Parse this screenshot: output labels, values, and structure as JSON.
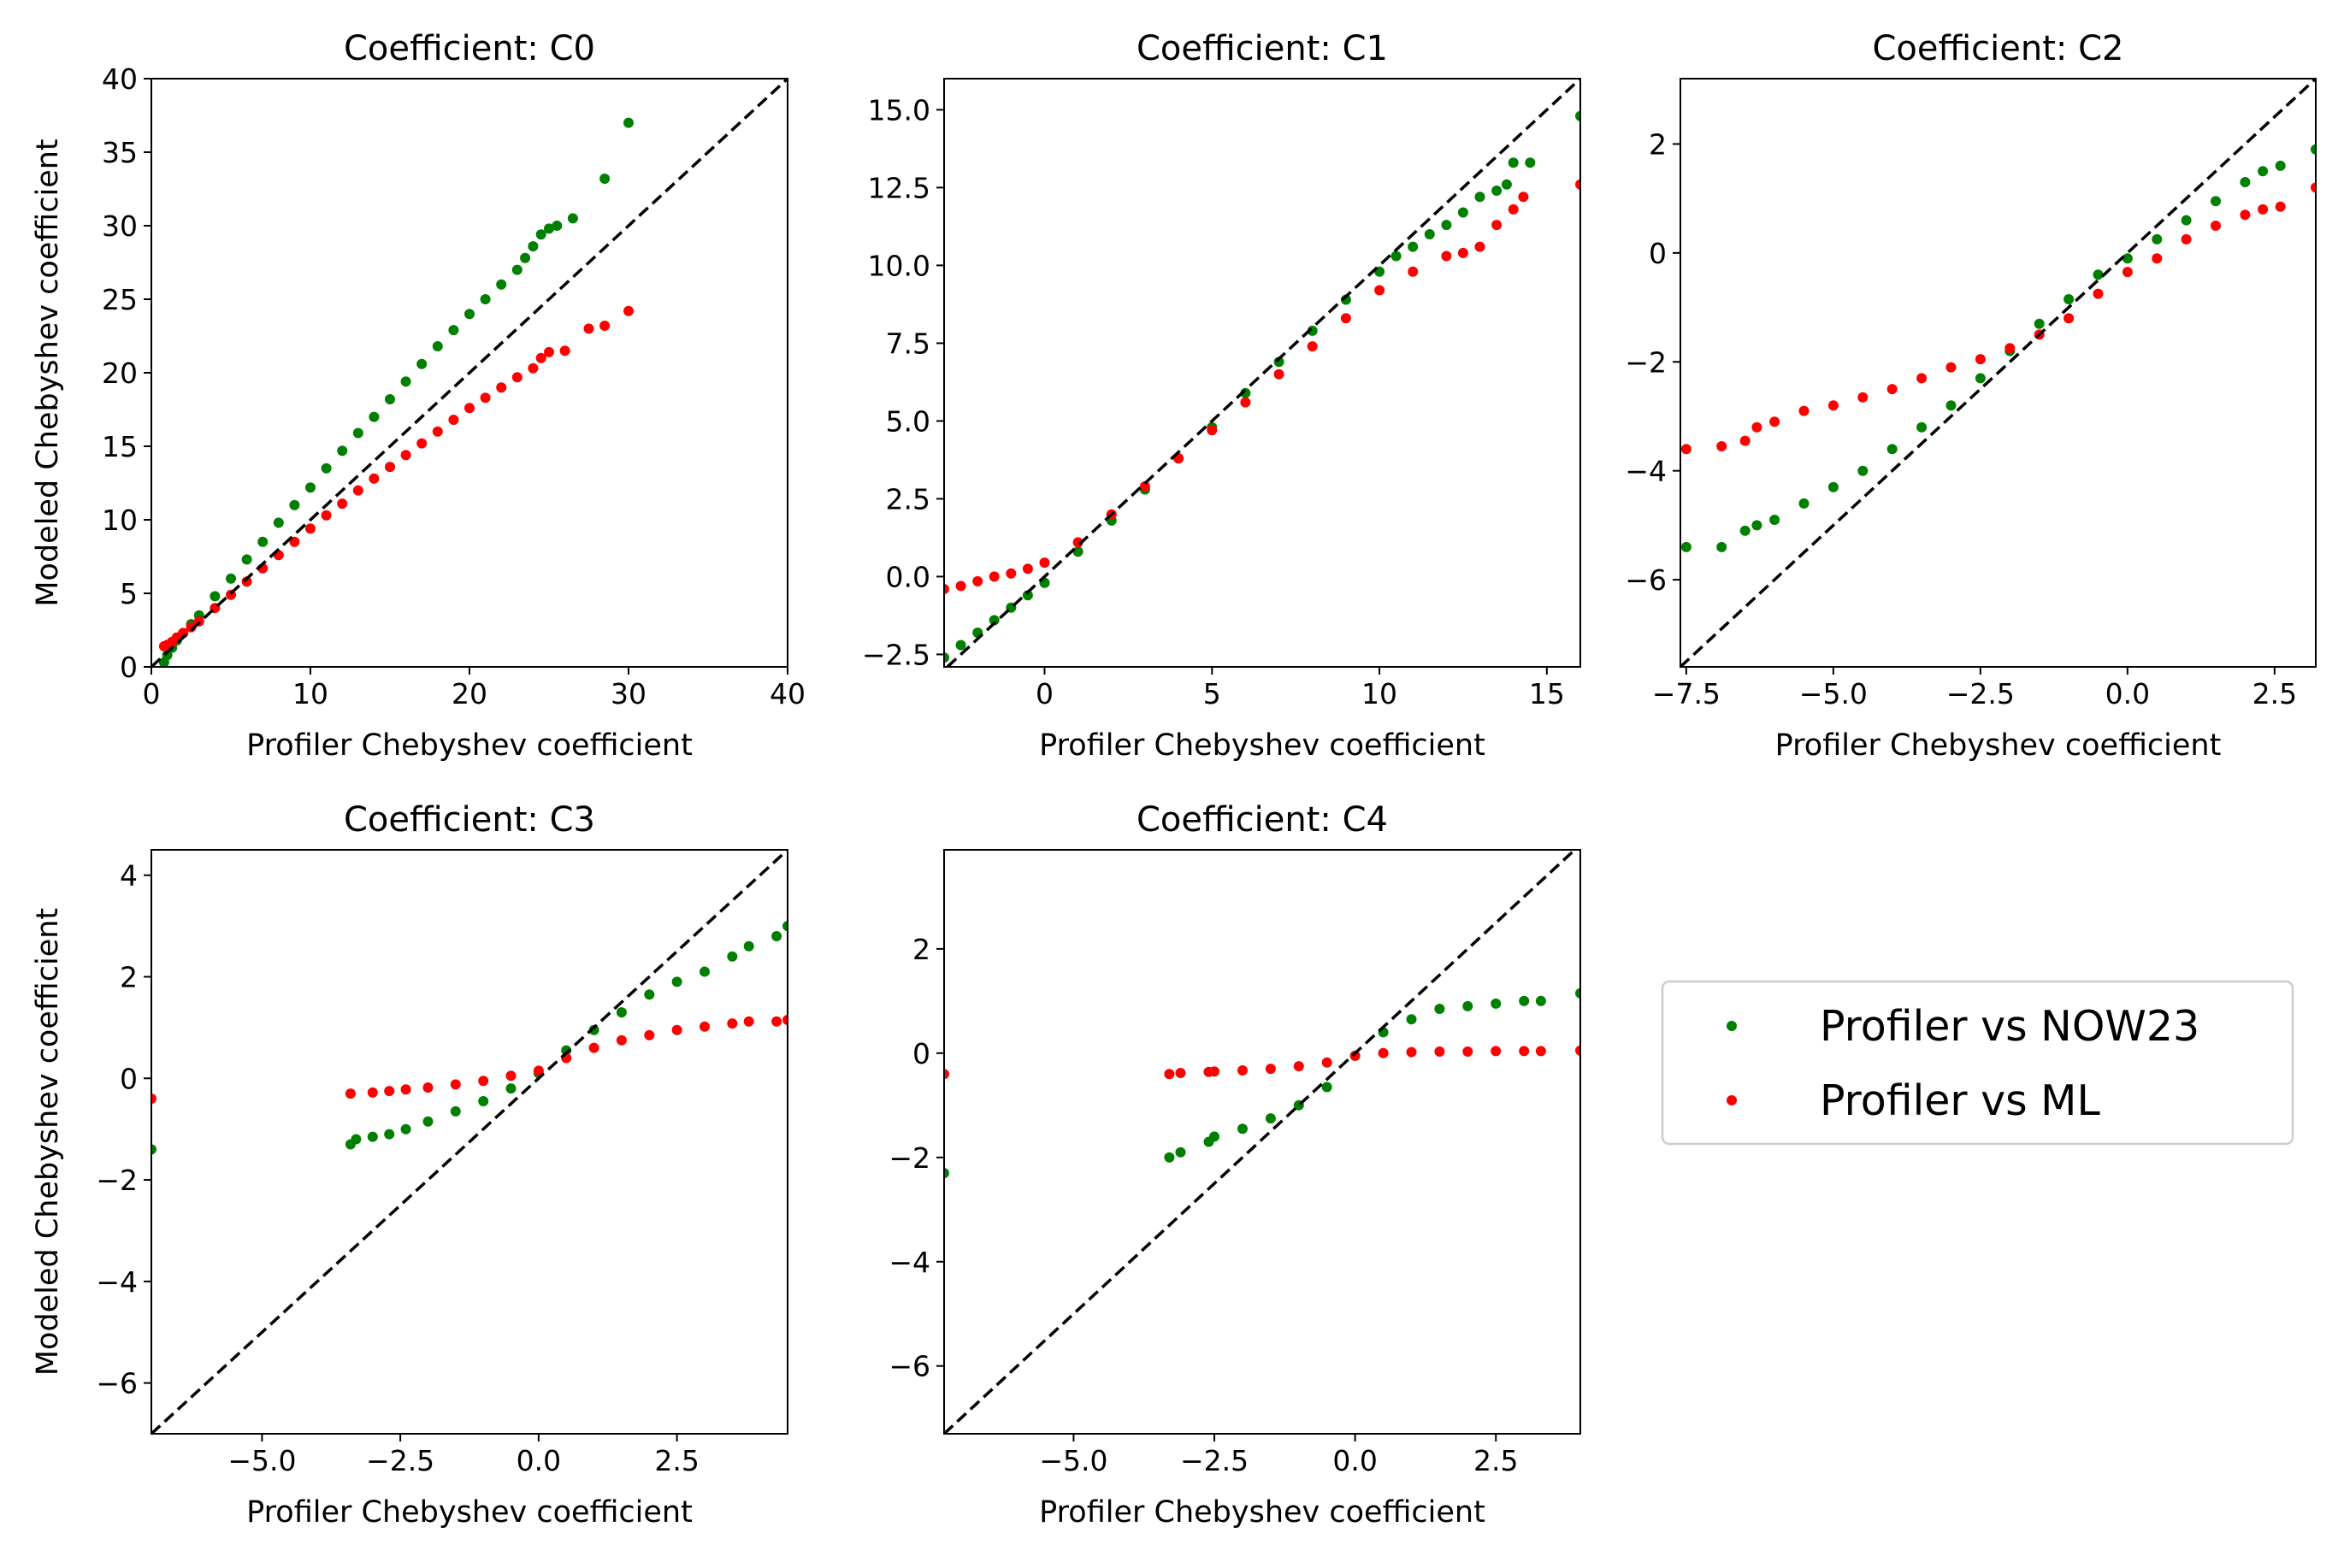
{
  "chart_data": [
    {
      "type": "scatter",
      "title": "Coefficient: C0",
      "xlabel": "Profiler Chebyshev coefficient",
      "ylabel": "Modeled Chebyshev coefficient",
      "xlim": [
        0,
        40
      ],
      "ylim": [
        0,
        40
      ],
      "xticks": [
        0,
        10,
        20,
        30,
        40
      ],
      "yticks": [
        0,
        5,
        10,
        15,
        20,
        25,
        30,
        35,
        40
      ],
      "identity_line": true,
      "series": [
        {
          "name": "Profiler vs NOW23",
          "color": "#008000",
          "x": [
            0.8,
            1.0,
            1.3,
            1.6,
            2.0,
            2.5,
            3.0,
            4.0,
            5.0,
            6.0,
            7.0,
            8.0,
            9.0,
            10.0,
            11.0,
            12.0,
            13.0,
            14.0,
            15.0,
            16.0,
            17.0,
            18.0,
            19.0,
            20.0,
            21.0,
            22.0,
            23.0,
            23.5,
            24.0,
            24.5,
            25.0,
            25.5,
            26.5,
            28.5,
            30.0
          ],
          "y": [
            0.3,
            0.8,
            1.3,
            1.8,
            2.3,
            2.9,
            3.5,
            4.8,
            6.0,
            7.3,
            8.5,
            9.8,
            11.0,
            12.2,
            13.5,
            14.7,
            15.9,
            17.0,
            18.2,
            19.4,
            20.6,
            21.8,
            22.9,
            24.0,
            25.0,
            26.0,
            27.0,
            27.8,
            28.6,
            29.4,
            29.8,
            30.0,
            30.5,
            33.2,
            37.0
          ]
        },
        {
          "name": "Profiler vs ML",
          "color": "#ff0000",
          "x": [
            0.8,
            1.0,
            1.3,
            1.6,
            2.0,
            2.5,
            3.0,
            4.0,
            5.0,
            6.0,
            7.0,
            8.0,
            9.0,
            10.0,
            11.0,
            12.0,
            13.0,
            14.0,
            15.0,
            16.0,
            17.0,
            18.0,
            19.0,
            20.0,
            21.0,
            22.0,
            23.0,
            24.0,
            24.5,
            25.0,
            26.0,
            27.5,
            28.5,
            30.0
          ],
          "y": [
            1.4,
            1.5,
            1.7,
            2.0,
            2.3,
            2.7,
            3.1,
            4.0,
            4.9,
            5.8,
            6.7,
            7.6,
            8.5,
            9.4,
            10.3,
            11.1,
            12.0,
            12.8,
            13.6,
            14.4,
            15.2,
            16.0,
            16.8,
            17.6,
            18.3,
            19.0,
            19.7,
            20.3,
            21.0,
            21.4,
            21.5,
            23.0,
            23.2,
            24.2
          ]
        }
      ]
    },
    {
      "type": "scatter",
      "title": "Coefficient: C1",
      "xlabel": "Profiler Chebyshev coefficient",
      "ylabel": "",
      "xlim": [
        -3,
        16
      ],
      "ylim": [
        -2.9,
        16
      ],
      "xticks": [
        0,
        5,
        10,
        15
      ],
      "yticks": [
        -2.5,
        0.0,
        2.5,
        5.0,
        7.5,
        10.0,
        12.5,
        15.0
      ],
      "identity_line": true,
      "series": [
        {
          "name": "Profiler vs NOW23",
          "color": "#008000",
          "x": [
            -3.0,
            -2.5,
            -2.0,
            -1.5,
            -1.0,
            -0.5,
            0.0,
            1.0,
            2.0,
            3.0,
            4.0,
            5.0,
            6.0,
            7.0,
            8.0,
            9.0,
            10.0,
            10.5,
            11.0,
            11.5,
            12.0,
            12.5,
            13.0,
            13.5,
            13.8,
            14.0,
            14.5,
            16.0
          ],
          "y": [
            -2.6,
            -2.2,
            -1.8,
            -1.4,
            -1.0,
            -0.6,
            -0.2,
            0.8,
            1.8,
            2.8,
            3.8,
            4.8,
            5.9,
            6.9,
            7.9,
            8.9,
            9.8,
            10.3,
            10.6,
            11.0,
            11.3,
            11.7,
            12.2,
            12.4,
            12.6,
            13.3,
            13.3,
            14.8
          ]
        },
        {
          "name": "Profiler vs ML",
          "color": "#ff0000",
          "x": [
            -3.0,
            -2.5,
            -2.0,
            -1.5,
            -1.0,
            -0.5,
            0.0,
            1.0,
            2.0,
            3.0,
            4.0,
            5.0,
            6.0,
            7.0,
            8.0,
            9.0,
            10.0,
            11.0,
            12.0,
            12.5,
            13.0,
            13.5,
            14.0,
            14.3,
            16.0
          ],
          "y": [
            -0.4,
            -0.3,
            -0.15,
            0.0,
            0.1,
            0.25,
            0.45,
            1.1,
            2.0,
            2.9,
            3.8,
            4.7,
            5.6,
            6.5,
            7.4,
            8.3,
            9.2,
            9.8,
            10.3,
            10.4,
            10.6,
            11.3,
            11.8,
            12.2,
            12.6
          ]
        }
      ]
    },
    {
      "type": "scatter",
      "title": "Coefficient: C2",
      "xlabel": "Profiler Chebyshev coefficient",
      "ylabel": "",
      "xlim": [
        -7.6,
        3.2
      ],
      "ylim": [
        -7.6,
        3.2
      ],
      "xticks": [
        -7.5,
        -5.0,
        -2.5,
        0.0,
        2.5
      ],
      "yticks": [
        -6,
        -4,
        -2,
        0,
        2
      ],
      "identity_line": true,
      "series": [
        {
          "name": "Profiler vs NOW23",
          "color": "#008000",
          "x": [
            -7.5,
            -6.9,
            -6.5,
            -6.3,
            -6.0,
            -5.5,
            -5.0,
            -4.5,
            -4.0,
            -3.5,
            -3.0,
            -2.5,
            -2.0,
            -1.5,
            -1.0,
            -0.5,
            0.0,
            0.5,
            1.0,
            1.5,
            2.0,
            2.3,
            2.6,
            3.2
          ],
          "y": [
            -5.4,
            -5.4,
            -5.1,
            -5.0,
            -4.9,
            -4.6,
            -4.3,
            -4.0,
            -3.6,
            -3.2,
            -2.8,
            -2.3,
            -1.8,
            -1.3,
            -0.85,
            -0.4,
            -0.1,
            0.25,
            0.6,
            0.95,
            1.3,
            1.5,
            1.6,
            1.9
          ]
        },
        {
          "name": "Profiler vs ML",
          "color": "#ff0000",
          "x": [
            -7.5,
            -6.9,
            -6.5,
            -6.3,
            -6.0,
            -5.5,
            -5.0,
            -4.5,
            -4.0,
            -3.5,
            -3.0,
            -2.5,
            -2.0,
            -1.5,
            -1.0,
            -0.5,
            0.0,
            0.5,
            1.0,
            1.5,
            2.0,
            2.3,
            2.6,
            3.2
          ],
          "y": [
            -3.6,
            -3.55,
            -3.45,
            -3.2,
            -3.1,
            -2.9,
            -2.8,
            -2.65,
            -2.5,
            -2.3,
            -2.1,
            -1.95,
            -1.75,
            -1.5,
            -1.2,
            -0.75,
            -0.35,
            -0.1,
            0.25,
            0.5,
            0.7,
            0.8,
            0.85,
            1.2
          ]
        }
      ]
    },
    {
      "type": "scatter",
      "title": "Coefficient: C3",
      "xlabel": "Profiler Chebyshev coefficient",
      "ylabel": "Modeled Chebyshev coefficient",
      "xlim": [
        -7,
        4.5
      ],
      "ylim": [
        -7,
        4.5
      ],
      "xticks": [
        -5.0,
        -2.5,
        0.0,
        2.5
      ],
      "yticks": [
        -6,
        -4,
        -2,
        0,
        2,
        4
      ],
      "identity_line": true,
      "series": [
        {
          "name": "Profiler vs NOW23",
          "color": "#008000",
          "x": [
            -7.0,
            -3.4,
            -3.3,
            -3.0,
            -2.7,
            -2.4,
            -2.0,
            -1.5,
            -1.0,
            -0.5,
            0.0,
            0.5,
            1.0,
            1.5,
            2.0,
            2.5,
            3.0,
            3.5,
            3.8,
            4.3,
            4.5
          ],
          "y": [
            -1.4,
            -1.3,
            -1.2,
            -1.15,
            -1.1,
            -1.0,
            -0.85,
            -0.65,
            -0.45,
            -0.2,
            0.1,
            0.55,
            0.95,
            1.3,
            1.65,
            1.9,
            2.1,
            2.4,
            2.6,
            2.8,
            3.0
          ]
        },
        {
          "name": "Profiler vs ML",
          "color": "#ff0000",
          "x": [
            -7.0,
            -3.4,
            -3.0,
            -2.7,
            -2.4,
            -2.0,
            -1.5,
            -1.0,
            -0.5,
            0.0,
            0.5,
            1.0,
            1.5,
            2.0,
            2.5,
            3.0,
            3.5,
            3.8,
            4.3,
            4.5
          ],
          "y": [
            -0.4,
            -0.3,
            -0.28,
            -0.25,
            -0.22,
            -0.18,
            -0.12,
            -0.05,
            0.05,
            0.15,
            0.4,
            0.6,
            0.75,
            0.85,
            0.95,
            1.02,
            1.08,
            1.12,
            1.12,
            1.15
          ]
        }
      ]
    },
    {
      "type": "scatter",
      "title": "Coefficient: C4",
      "xlabel": "Profiler Chebyshev coefficient",
      "ylabel": "",
      "xlim": [
        -7.3,
        4.0
      ],
      "ylim": [
        -7.3,
        3.9
      ],
      "xticks": [
        -5.0,
        -2.5,
        0.0,
        2.5
      ],
      "yticks": [
        -6,
        -4,
        -2,
        0,
        2
      ],
      "identity_line": true,
      "series": [
        {
          "name": "Profiler vs NOW23",
          "color": "#008000",
          "x": [
            -7.3,
            -3.3,
            -3.1,
            -2.6,
            -2.5,
            -2.0,
            -1.5,
            -1.0,
            -0.5,
            0.0,
            0.5,
            1.0,
            1.5,
            2.0,
            2.5,
            3.0,
            3.3,
            4.0
          ],
          "y": [
            -2.3,
            -2.0,
            -1.9,
            -1.7,
            -1.6,
            -1.45,
            -1.25,
            -1.0,
            -0.65,
            -0.05,
            0.4,
            0.65,
            0.85,
            0.9,
            0.95,
            1.0,
            1.0,
            1.15
          ]
        },
        {
          "name": "Profiler vs ML",
          "color": "#ff0000",
          "x": [
            -7.3,
            -3.3,
            -3.1,
            -2.6,
            -2.5,
            -2.0,
            -1.5,
            -1.0,
            -0.5,
            0.0,
            0.5,
            1.0,
            1.5,
            2.0,
            2.5,
            3.0,
            3.3,
            4.0
          ],
          "y": [
            -0.4,
            -0.4,
            -0.38,
            -0.36,
            -0.35,
            -0.33,
            -0.3,
            -0.25,
            -0.18,
            -0.05,
            0.0,
            0.02,
            0.03,
            0.03,
            0.04,
            0.04,
            0.04,
            0.05
          ]
        }
      ]
    }
  ],
  "legend": {
    "items": [
      {
        "label": "Profiler vs NOW23",
        "color": "#008000"
      },
      {
        "label": "Profiler vs ML",
        "color": "#ff0000"
      }
    ]
  }
}
